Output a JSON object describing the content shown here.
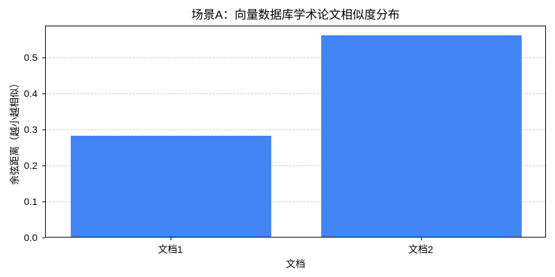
{
  "chart_data": {
    "type": "bar",
    "title": "场景A：向量数据库学术论文相似度分布",
    "categories": [
      "文档1",
      "文档2"
    ],
    "values": [
      0.28,
      0.56
    ],
    "xlabel": "文档",
    "ylabel": "余弦距离（越小越相似）",
    "ylim": [
      0,
      0.588
    ],
    "yticks": [
      0.0,
      0.1,
      0.2,
      0.3,
      0.4,
      0.5
    ],
    "ytick_labels": [
      "0.0",
      "0.1",
      "0.2",
      "0.3",
      "0.4",
      "0.5"
    ],
    "bar_color": "#4285F4",
    "grid": "horizontal-dashed-below-bars",
    "grid_color": "#c9c9c9",
    "spine_color": "#000000",
    "bar_width_ratio": 0.8,
    "legend": "none",
    "background": "#ffffff"
  }
}
